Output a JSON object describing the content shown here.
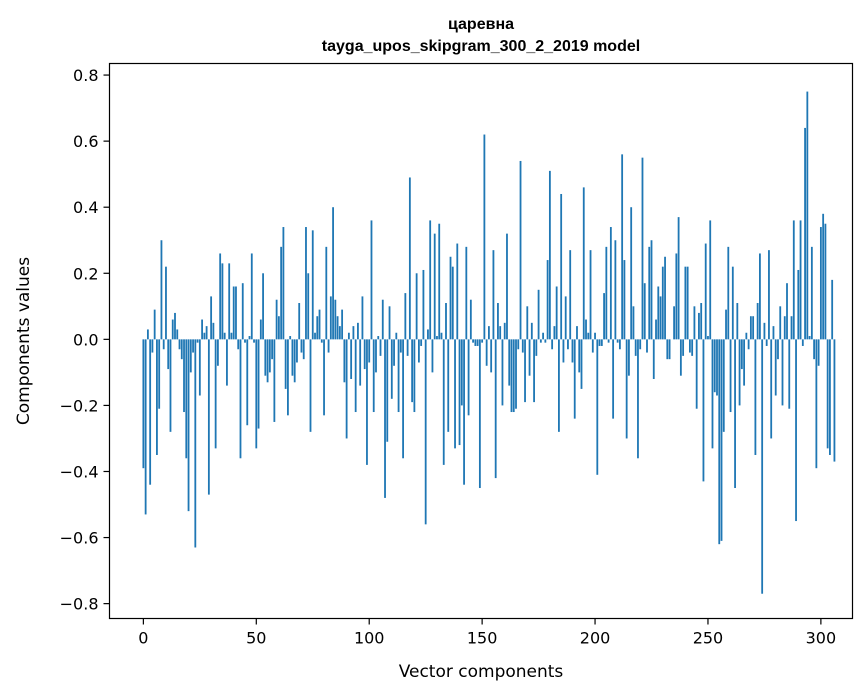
{
  "chart_data": {
    "type": "bar",
    "title_line1": "царевна",
    "title_line2": "tayga_upos_skipgram_300_2_2019 model",
    "xlabel": "Vector components",
    "ylabel": "Components values",
    "xlim": [
      -15,
      314
    ],
    "ylim": [
      -0.845,
      0.835
    ],
    "x_ticks": [
      0,
      50,
      100,
      150,
      200,
      250,
      300
    ],
    "x_tick_labels": [
      "0",
      "50",
      "100",
      "150",
      "200",
      "250",
      "300"
    ],
    "y_ticks": [
      -0.8,
      -0.6,
      -0.4,
      -0.2,
      0.0,
      0.2,
      0.4,
      0.6,
      0.8
    ],
    "y_tick_labels": [
      "−0.8",
      "−0.6",
      "−0.4",
      "−0.2",
      "0.0",
      "0.2",
      "0.4",
      "0.6",
      "0.8"
    ],
    "bar_color": "#1f77b4",
    "values": [
      -0.39,
      -0.53,
      0.03,
      -0.44,
      -0.04,
      0.09,
      -0.35,
      -0.21,
      0.3,
      -0.03,
      0.22,
      -0.09,
      -0.28,
      0.06,
      0.08,
      0.03,
      -0.03,
      -0.06,
      -0.22,
      -0.36,
      -0.52,
      -0.1,
      -0.04,
      -0.63,
      -0.01,
      -0.17,
      0.06,
      0.02,
      0.04,
      -0.47,
      0.13,
      0.05,
      -0.33,
      -0.08,
      0.26,
      0.23,
      0.02,
      -0.14,
      0.23,
      0.02,
      0.16,
      0.16,
      -0.03,
      -0.36,
      0.17,
      -0.01,
      -0.26,
      0.01,
      0.26,
      -0.01,
      -0.33,
      -0.27,
      0.06,
      0.2,
      -0.11,
      -0.13,
      -0.1,
      -0.06,
      -0.25,
      0.12,
      0.07,
      0.28,
      0.34,
      -0.15,
      -0.23,
      0.01,
      -0.11,
      -0.13,
      -0.07,
      0.11,
      -0.04,
      -0.06,
      0.34,
      0.2,
      -0.28,
      0.33,
      0.02,
      0.07,
      0.09,
      -0.01,
      -0.23,
      0.28,
      -0.04,
      0.13,
      0.4,
      0.12,
      0.07,
      0.04,
      0.09,
      -0.13,
      -0.3,
      0.02,
      -0.12,
      0.04,
      -0.22,
      0.05,
      -0.14,
      0.13,
      -0.09,
      -0.38,
      -0.07,
      0.36,
      -0.22,
      -0.1,
      0.01,
      -0.05,
      0.12,
      -0.48,
      -0.31,
      0.1,
      -0.18,
      -0.08,
      0.02,
      -0.22,
      -0.04,
      -0.36,
      0.14,
      -0.05,
      0.49,
      -0.19,
      -0.22,
      0.2,
      -0.07,
      -0.02,
      0.21,
      -0.56,
      0.03,
      0.36,
      -0.1,
      0.32,
      0.01,
      0.35,
      0.02,
      -0.38,
      0.11,
      -0.28,
      0.25,
      0.22,
      -0.33,
      0.29,
      -0.32,
      -0.2,
      -0.44,
      0.28,
      -0.23,
      0.12,
      -0.01,
      -0.02,
      -0.02,
      -0.45,
      -0.01,
      0.62,
      -0.08,
      0.04,
      -0.1,
      0.27,
      -0.42,
      0.11,
      0.04,
      -0.2,
      0.05,
      0.32,
      -0.14,
      -0.22,
      -0.22,
      -0.21,
      -0.03,
      0.54,
      -0.04,
      -0.19,
      0.1,
      -0.11,
      0.05,
      -0.19,
      -0.05,
      0.15,
      -0.01,
      0.02,
      -0.01,
      0.24,
      0.51,
      -0.03,
      0.04,
      0.16,
      -0.28,
      0.44,
      -0.07,
      0.13,
      -0.03,
      0.27,
      -0.07,
      -0.24,
      0.04,
      -0.1,
      -0.15,
      0.46,
      0.06,
      0.02,
      0.27,
      -0.04,
      0.02,
      -0.41,
      -0.02,
      -0.02,
      0.14,
      0.28,
      -0.01,
      0.34,
      -0.24,
      0.3,
      -0.01,
      -0.03,
      0.56,
      0.24,
      -0.3,
      -0.11,
      0.4,
      0.1,
      -0.05,
      -0.36,
      -0.03,
      0.55,
      0.17,
      -0.04,
      0.28,
      0.3,
      -0.12,
      0.06,
      0.16,
      0.13,
      0.22,
      0.25,
      -0.06,
      -0.06,
      0.0,
      0.1,
      0.26,
      0.37,
      -0.11,
      -0.05,
      0.22,
      0.22,
      -0.04,
      -0.05,
      0.1,
      -0.21,
      0.08,
      0.11,
      -0.43,
      0.29,
      0.01,
      0.36,
      -0.33,
      -0.16,
      -0.17,
      -0.62,
      -0.61,
      -0.28,
      0.09,
      0.28,
      -0.22,
      0.22,
      -0.45,
      0.11,
      -0.2,
      -0.09,
      -0.14,
      0.02,
      -0.03,
      0.07,
      0.07,
      -0.35,
      0.11,
      0.26,
      -0.77,
      0.05,
      -0.02,
      0.27,
      -0.3,
      0.04,
      -0.17,
      -0.06,
      0.1,
      -0.2,
      0.07,
      0.17,
      -0.21,
      0.07,
      0.36,
      -0.55,
      0.21,
      0.36,
      -0.02,
      0.64,
      0.75,
      0.01,
      0.28,
      -0.06,
      -0.39,
      -0.08,
      0.34,
      0.38,
      0.35,
      -0.33,
      -0.35,
      0.18,
      -0.37,
      0.0,
      0.0,
      0.0
    ]
  }
}
